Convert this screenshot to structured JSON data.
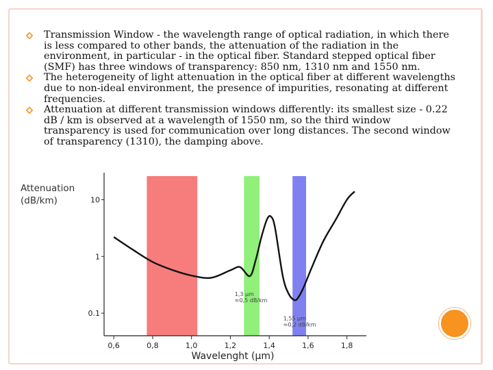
{
  "slide": {
    "bullets": [
      "Transmission Window - the wavelength range of optical radiation, in which there is less compared to other bands, the attenuation of the radiation in the environment, in particular - in the optical fiber. Standard stepped optical fiber (SMF) has three windows of transparency: 850 nm, 1310 nm and 1550 nm.",
      "The heterogeneity of light attenuation in the optical fiber at different wavelengths due to non-ideal environment, the presence of impurities, resonating at different frequencies.",
      "Attenuation at different transmission windows differently: its smallest size - 0.22 dB / km is observed at a wavelength of 1550 nm, so the third window transparency is used for communication over long distances. The second window of transparency (1310), the damping above."
    ],
    "colors": {
      "bullet": "#f7931e",
      "frame": "#f6d5c9",
      "accent_dot": "#f7931e"
    },
    "bullet_icon": "open-diamond-icon"
  },
  "chart_data": {
    "type": "line",
    "ylabel_line1": "Attenuation",
    "ylabel_line2": "(dB/km)",
    "xlabel": "Wavelenght (µm)",
    "yscale": "log",
    "xlim": [
      0.55,
      1.9
    ],
    "ylim": [
      0.04,
      30
    ],
    "x_ticks": [
      "0,6",
      "0,8",
      "1,0",
      "1,2",
      "1,4",
      "1,6",
      "1,8"
    ],
    "y_ticks": [
      "0.1",
      "1",
      "10"
    ],
    "bands": [
      {
        "x_from": 0.77,
        "x_to": 1.03,
        "color": "#f77c7c"
      },
      {
        "x_from": 1.27,
        "x_to": 1.35,
        "color": "#90f07a"
      },
      {
        "x_from": 1.52,
        "x_to": 1.59,
        "color": "#8080f0"
      }
    ],
    "annotations": [
      {
        "line1": "1,3 µm",
        "line2": "≈0,5 dB/km",
        "x": 1.3,
        "y": 0.2
      },
      {
        "line1": "1,55 µm",
        "line2": "≈0,2 dB/km",
        "x": 1.55,
        "y": 0.075
      }
    ],
    "series": [
      {
        "x": [
          0.6,
          0.7,
          0.8,
          0.9,
          1.0,
          1.1,
          1.2,
          1.25,
          1.3,
          1.33,
          1.36,
          1.39,
          1.41,
          1.43,
          1.47,
          1.5,
          1.53,
          1.55,
          1.58,
          1.62,
          1.68,
          1.74,
          1.8,
          1.84
        ],
        "y": [
          2.2,
          1.3,
          0.8,
          0.58,
          0.46,
          0.42,
          0.57,
          0.65,
          0.45,
          0.85,
          2.2,
          4.6,
          5.0,
          3.2,
          0.45,
          0.22,
          0.17,
          0.19,
          0.3,
          0.65,
          1.9,
          4.3,
          10.0,
          14.0
        ]
      }
    ]
  }
}
